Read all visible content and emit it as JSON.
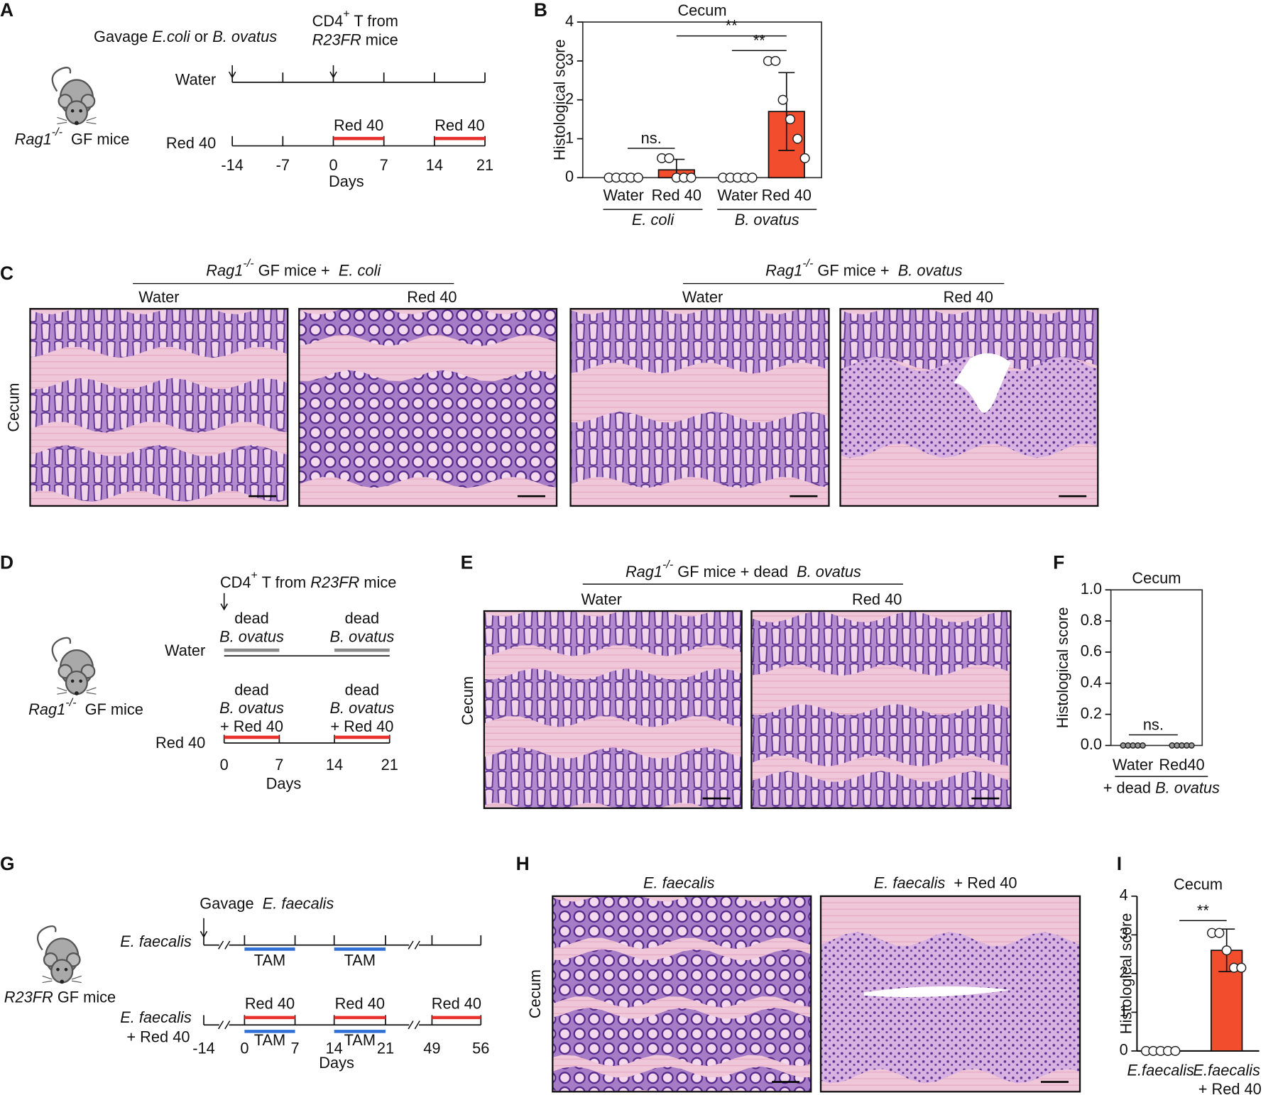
{
  "panel_letters": [
    "A",
    "B",
    "C",
    "D",
    "E",
    "F",
    "G",
    "H",
    "I"
  ],
  "panel_a": {
    "gavage": [
      {
        "text": "Gavage "
      },
      {
        "text": "E.coli",
        "italic": true
      },
      {
        "text": " or "
      },
      {
        "text": "B. ovatus",
        "italic": true
      }
    ],
    "transfer": [
      {
        "text": "CD4"
      },
      {
        "text": "+",
        "sup": true
      },
      {
        "text": " T from"
      }
    ],
    "transfer_2": [
      {
        "text": "R23FR",
        "italic": true
      },
      {
        "text": " mice"
      }
    ],
    "mouse": [
      {
        "text": "Rag1",
        "italic": true
      },
      {
        "text": "-/-",
        "italic": true,
        "sup": true
      },
      {
        "text": "  GF mice"
      }
    ],
    "rows": [
      "Water",
      "Red 40"
    ],
    "treatments": [
      "Red 40",
      "Red 40"
    ],
    "days": [
      -14,
      -7,
      0,
      7,
      14,
      21
    ],
    "days_label": "Days"
  },
  "panel_c": {
    "groups": [
      [
        {
          "text": "Rag1",
          "italic": true
        },
        {
          "text": "-/-",
          "italic": true,
          "sup": true
        },
        {
          "text": " GF mice +  "
        },
        {
          "text": "E. coli",
          "italic": true
        }
      ],
      [
        {
          "text": "Rag1",
          "italic": true
        },
        {
          "text": "-/-",
          "italic": true,
          "sup": true
        },
        {
          "text": " GF mice +  "
        },
        {
          "text": "B. ovatus",
          "italic": true
        }
      ]
    ],
    "columns": [
      "Water",
      "Red 40",
      "Water",
      "Red 40"
    ],
    "row_label": "Cecum"
  },
  "panel_d": {
    "transfer": [
      {
        "text": "CD4"
      },
      {
        "text": "+",
        "sup": true
      },
      {
        "text": " T from "
      },
      {
        "text": "R23FR",
        "italic": true
      },
      {
        "text": " mice"
      }
    ],
    "water_labels": [
      [
        "dead",
        "B. ovatus"
      ],
      [
        "dead",
        "B. ovatus"
      ]
    ],
    "red_labels": [
      [
        "dead",
        "B. ovatus",
        "+ Red 40"
      ],
      [
        "dead",
        "B. ovatus",
        "+ Red 40"
      ]
    ],
    "rows": [
      "Water",
      "Red 40"
    ],
    "mouse": [
      {
        "text": "Rag1",
        "italic": true
      },
      {
        "text": "-/-",
        "italic": true,
        "sup": true
      },
      {
        "text": "  GF mice"
      }
    ],
    "days": [
      0,
      7,
      14,
      21
    ],
    "days_label": "Days"
  },
  "panel_e": {
    "group": [
      {
        "text": "Rag1",
        "italic": true
      },
      {
        "text": "-/-",
        "italic": true,
        "sup": true
      },
      {
        "text": " GF mice + dead  "
      },
      {
        "text": "B. ovatus",
        "italic": true
      }
    ],
    "columns": [
      "Water",
      "Red 40"
    ],
    "row_label": "Cecum"
  },
  "panel_g": {
    "gavage": [
      {
        "text": "Gavage  "
      },
      {
        "text": "E. faecalis",
        "italic": true
      }
    ],
    "mouse": [
      {
        "text": "R23FR",
        "italic": true
      },
      {
        "text": " GF mice"
      }
    ],
    "rows": [
      [
        "E. faecalis"
      ],
      [
        "E. faecalis",
        "+ Red 40"
      ]
    ],
    "tam": [
      "TAM",
      "TAM",
      "TAM",
      "TAM"
    ],
    "treatments": [
      "Red 40",
      "Red 40",
      "Red 40"
    ],
    "days": [
      -14,
      0,
      7,
      14,
      21,
      49,
      56
    ],
    "days_label": "Days"
  },
  "panel_h": {
    "columns": [
      [
        {
          "text": "E. faecalis",
          "italic": true
        }
      ],
      [
        {
          "text": "E. faecalis",
          "italic": true
        },
        {
          "text": "  + Red 40"
        }
      ]
    ],
    "row_label": "Cecum"
  },
  "chart_data": [
    {
      "type": "bar_dots",
      "title": "Cecum",
      "y_label": "Histological score",
      "categories": [
        "Water",
        "Red 40",
        "Water",
        "Red 40"
      ],
      "groups": [
        [
          {
            "text": "E. coli",
            "italic": true
          }
        ],
        [
          {
            "text": "B. ovatus",
            "italic": true
          }
        ]
      ],
      "values": [
        0,
        0.2,
        0,
        1.7
      ],
      "errors": [
        0,
        0.27,
        0,
        1.0
      ],
      "points": [
        [
          0,
          0,
          0,
          0,
          0
        ],
        [
          0.5,
          0.5,
          0,
          0,
          0
        ],
        [
          0,
          0,
          0,
          0,
          0
        ],
        [
          3,
          3,
          2,
          1.5,
          1,
          0.5
        ]
      ],
      "color": "#f24e2e",
      "point_color": "#ffffff",
      "frame": true,
      "ylim": [
        0,
        4
      ],
      "yticks": [
        0,
        1,
        2,
        3,
        4
      ],
      "annotations": [
        "ns.",
        "**",
        "**"
      ]
    },
    {
      "type": "bar_dots",
      "title": "Cecum",
      "y_label": "Histological score",
      "categories": [
        "Water",
        "Red40"
      ],
      "groups": [
        [
          {
            "text": "+ dead "
          },
          {
            "text": "B. ovatus",
            "italic": true
          }
        ]
      ],
      "values": [
        0,
        0
      ],
      "errors": [
        0,
        0
      ],
      "points": [
        [
          0,
          0,
          0,
          0,
          0
        ],
        [
          0,
          0,
          0,
          0,
          0
        ]
      ],
      "color": "#f24e2e",
      "point_color": "#9a9a9a",
      "frame": true,
      "ylim": [
        0,
        1
      ],
      "yticks": [
        {
          "value": 0,
          "label": "0.0"
        },
        0.2,
        0.4,
        0.6,
        0.8,
        {
          "value": 1,
          "label": "1.0"
        }
      ],
      "annotations": [
        "ns."
      ]
    },
    {
      "type": "bar_dots",
      "title": "Cecum",
      "y_label": "Histological score",
      "categories": [
        [
          "E.faecalis"
        ],
        [
          "E.faecalis",
          "+ Red 40"
        ]
      ],
      "values": [
        0,
        2.6
      ],
      "errors": [
        0,
        0.55
      ],
      "points": [
        [
          0,
          0,
          0,
          0,
          0
        ],
        [
          3.05,
          3.05,
          2.6,
          2.15,
          2.15
        ]
      ],
      "color": "#f24e2e",
      "point_color": "#ffffff",
      "frame": false,
      "ylim": [
        0,
        4
      ],
      "yticks": [
        0,
        1,
        2,
        3,
        4
      ],
      "annotations": [
        "**"
      ]
    }
  ]
}
